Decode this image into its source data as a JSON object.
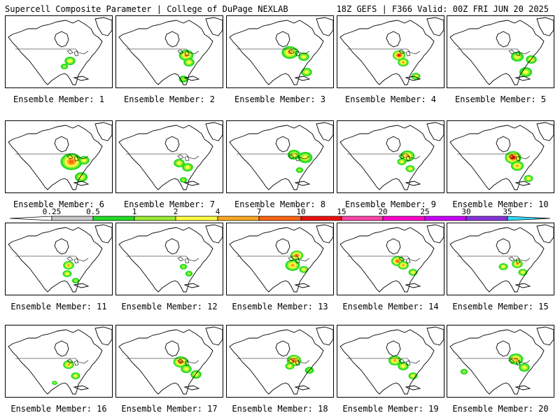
{
  "header": {
    "title": "Supercell Composite Parameter | College of DuPage NEXLAB",
    "run_info": "18Z GEFS | F366 Valid: 00Z FRI JUN 20 2025"
  },
  "panels": [
    {
      "label": "Ensemble Member: 1"
    },
    {
      "label": "Ensemble Member: 2"
    },
    {
      "label": "Ensemble Member: 3"
    },
    {
      "label": "Ensemble Member: 4"
    },
    {
      "label": "Ensemble Member: 5"
    },
    {
      "label": "Ensemble Member: 6"
    },
    {
      "label": "Ensemble Member: 7"
    },
    {
      "label": "Ensemble Member: 8"
    },
    {
      "label": "Ensemble Member: 9"
    },
    {
      "label": "Ensemble Member: 10"
    },
    {
      "label": "Ensemble Member: 11"
    },
    {
      "label": "Ensemble Member: 12"
    },
    {
      "label": "Ensemble Member: 13"
    },
    {
      "label": "Ensemble Member: 14"
    },
    {
      "label": "Ensemble Member: 15"
    },
    {
      "label": "Ensemble Member: 16"
    },
    {
      "label": "Ensemble Member: 17"
    },
    {
      "label": "Ensemble Member: 18"
    },
    {
      "label": "Ensemble Member: 19"
    },
    {
      "label": "Ensemble Member: 20"
    }
  ],
  "colorbar": {
    "labels": [
      "0.25",
      "0.5",
      "1",
      "2",
      "4",
      "7",
      "10",
      "15",
      "20",
      "25",
      "30",
      "35"
    ],
    "colors": [
      "#c8c8c8",
      "#22dd22",
      "#99ee33",
      "#ffff44",
      "#ffaa22",
      "#ff6611",
      "#ee1111",
      "#ff44aa",
      "#ff00cc",
      "#cc00ff",
      "#8833dd",
      "#bb88ee",
      "#33ddff"
    ]
  }
}
